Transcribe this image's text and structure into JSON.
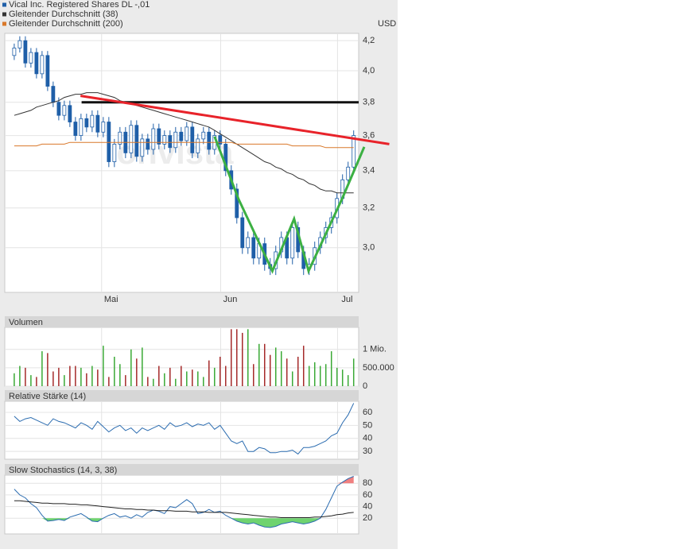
{
  "chart_data": [
    {
      "type": "candlestick",
      "unit": "USD",
      "log": true,
      "grid": true,
      "watermark": "onvista",
      "ylim": [
        2.79,
        4.25
      ],
      "yticks": [
        {
          "value": 3.0,
          "label": "3,0"
        },
        {
          "value": 3.2,
          "label": "3,2"
        },
        {
          "value": 3.4,
          "label": "3,4"
        },
        {
          "value": 3.6,
          "label": "3,6"
        },
        {
          "value": 3.8,
          "label": "3,8"
        },
        {
          "value": 4.0,
          "label": "4,0"
        },
        {
          "value": 4.2,
          "label": "4,2"
        }
      ],
      "xlim": [
        -1.7,
        61.9
      ],
      "xticks": [
        {
          "value": 15.7,
          "label": "Mai"
        },
        {
          "value": 37.1,
          "label": "Jun"
        },
        {
          "value": 58.1,
          "label": "Jul"
        }
      ],
      "series": [
        {
          "name": "Vical Inc. Registered Shares DL -,01",
          "type": "candlestick",
          "color": "#1f5fa8",
          "open": [
            4.1,
            4.15,
            4.2,
            4.05,
            4.12,
            3.98,
            4.1,
            3.9,
            3.8,
            3.72,
            3.78,
            3.68,
            3.6,
            3.7,
            3.65,
            3.72,
            3.62,
            3.68,
            3.45,
            3.55,
            3.62,
            3.5,
            3.66,
            3.48,
            3.58,
            3.52,
            3.64,
            3.55,
            3.6,
            3.53,
            3.62,
            3.57,
            3.65,
            3.5,
            3.58,
            3.62,
            3.52,
            3.6,
            3.55,
            3.4,
            3.3,
            3.15,
            3.0,
            3.05,
            2.95,
            3.02,
            2.92,
            2.9,
            2.98,
            3.05,
            2.95,
            3.1,
            2.98,
            2.9,
            2.92,
            3.0,
            3.05,
            3.1,
            3.15,
            3.25,
            3.35,
            3.42
          ],
          "high": [
            4.18,
            4.23,
            4.23,
            4.15,
            4.15,
            4.13,
            4.13,
            3.93,
            3.83,
            3.81,
            3.81,
            3.71,
            3.73,
            3.73,
            3.75,
            3.75,
            3.71,
            3.71,
            3.58,
            3.65,
            3.65,
            3.69,
            3.69,
            3.61,
            3.61,
            3.67,
            3.67,
            3.63,
            3.63,
            3.65,
            3.65,
            3.68,
            3.68,
            3.61,
            3.65,
            3.65,
            3.63,
            3.63,
            3.58,
            3.43,
            3.33,
            3.18,
            3.08,
            3.08,
            3.05,
            3.05,
            2.95,
            3.01,
            3.08,
            3.08,
            3.13,
            3.13,
            3.01,
            2.95,
            3.03,
            3.08,
            3.13,
            3.18,
            3.28,
            3.38,
            3.45,
            3.63
          ],
          "low": [
            4.07,
            4.12,
            4.02,
            4.02,
            3.95,
            3.95,
            3.87,
            3.77,
            3.69,
            3.69,
            3.65,
            3.57,
            3.57,
            3.62,
            3.62,
            3.59,
            3.59,
            3.42,
            3.42,
            3.52,
            3.47,
            3.47,
            3.45,
            3.45,
            3.49,
            3.49,
            3.52,
            3.52,
            3.5,
            3.5,
            3.54,
            3.54,
            3.47,
            3.47,
            3.55,
            3.49,
            3.49,
            3.52,
            3.37,
            3.27,
            3.12,
            2.97,
            2.97,
            2.92,
            2.92,
            2.89,
            2.87,
            2.87,
            2.95,
            2.92,
            2.92,
            2.95,
            2.87,
            2.87,
            2.89,
            2.97,
            3.02,
            3.07,
            3.12,
            3.22,
            3.32,
            3.39
          ],
          "close": [
            4.15,
            4.2,
            4.05,
            4.12,
            3.98,
            4.1,
            3.9,
            3.8,
            3.72,
            3.78,
            3.68,
            3.6,
            3.7,
            3.65,
            3.72,
            3.62,
            3.68,
            3.45,
            3.55,
            3.62,
            3.5,
            3.66,
            3.48,
            3.58,
            3.52,
            3.64,
            3.55,
            3.6,
            3.53,
            3.62,
            3.57,
            3.65,
            3.5,
            3.58,
            3.62,
            3.52,
            3.6,
            3.55,
            3.4,
            3.3,
            3.15,
            3.0,
            3.05,
            2.95,
            3.02,
            2.92,
            2.9,
            2.98,
            3.05,
            2.95,
            3.1,
            2.98,
            2.9,
            2.92,
            3.0,
            3.05,
            3.1,
            3.15,
            3.25,
            3.35,
            3.42,
            3.6
          ]
        },
        {
          "name": "Gleitender Durchschnitt (38)",
          "type": "line",
          "color": "#333333",
          "values": [
            3.72,
            3.73,
            3.74,
            3.75,
            3.77,
            3.78,
            3.79,
            3.8,
            3.81,
            3.83,
            3.84,
            3.85,
            3.85,
            3.86,
            3.86,
            3.86,
            3.85,
            3.84,
            3.83,
            3.81,
            3.8,
            3.79,
            3.78,
            3.77,
            3.76,
            3.75,
            3.74,
            3.73,
            3.72,
            3.71,
            3.7,
            3.69,
            3.68,
            3.67,
            3.66,
            3.65,
            3.63,
            3.61,
            3.59,
            3.57,
            3.55,
            3.53,
            3.51,
            3.49,
            3.47,
            3.45,
            3.44,
            3.42,
            3.41,
            3.39,
            3.38,
            3.36,
            3.35,
            3.33,
            3.32,
            3.3,
            3.29,
            3.29,
            3.28,
            3.28,
            3.28,
            3.28
          ]
        },
        {
          "name": "Gleitender Durchschnitt (200)",
          "type": "line",
          "color": "#d9782a",
          "values": [
            3.54,
            3.54,
            3.54,
            3.54,
            3.54,
            3.55,
            3.55,
            3.55,
            3.55,
            3.55,
            3.56,
            3.56,
            3.56,
            3.56,
            3.56,
            3.56,
            3.56,
            3.56,
            3.56,
            3.56,
            3.56,
            3.56,
            3.56,
            3.56,
            3.56,
            3.56,
            3.56,
            3.56,
            3.56,
            3.56,
            3.56,
            3.56,
            3.56,
            3.56,
            3.56,
            3.56,
            3.56,
            3.56,
            3.56,
            3.56,
            3.55,
            3.55,
            3.55,
            3.55,
            3.55,
            3.55,
            3.55,
            3.55,
            3.55,
            3.55,
            3.54,
            3.54,
            3.54,
            3.54,
            3.54,
            3.54,
            3.53,
            3.53,
            3.53,
            3.53,
            3.53,
            3.53
          ]
        }
      ],
      "annotations": [
        {
          "color": "#111111",
          "points": [
            [
              12.1,
              3.8
            ],
            [
              61.9,
              3.8
            ]
          ]
        },
        {
          "color": "#e8232a",
          "points": [
            [
              11.9,
              3.84
            ],
            [
              67.4,
              3.55
            ]
          ]
        },
        {
          "color": "#3cb043",
          "points": [
            [
              36,
              3.594
            ],
            [
              40.3,
              3.247
            ],
            [
              46.4,
              2.889
            ],
            [
              50.3,
              3.144
            ],
            [
              52.9,
              2.889
            ],
            [
              58.9,
              3.247
            ],
            [
              62.9,
              3.534
            ]
          ]
        }
      ]
    },
    {
      "type": "bar",
      "title": "Volumen",
      "color_up": "#3aa935",
      "color_down": "#a52a2a",
      "ylim": [
        0,
        1600000
      ],
      "yticks": [
        0,
        {
          "value": 500000,
          "label": "500.000"
        },
        {
          "value": 1000000,
          "label": "1 Mio."
        }
      ],
      "values": [
        350000,
        550000,
        500000,
        300000,
        250000,
        950000,
        900000,
        400000,
        500000,
        300000,
        550000,
        550000,
        500000,
        350000,
        550000,
        450000,
        1100000,
        250000,
        800000,
        600000,
        300000,
        1000000,
        750000,
        1050000,
        250000,
        200000,
        550000,
        350000,
        500000,
        200000,
        550000,
        400000,
        450000,
        400000,
        250000,
        700000,
        500000,
        800000,
        550000,
        1550000,
        1550000,
        1450000,
        1550000,
        600000,
        1150000,
        1150000,
        850000,
        1050000,
        950000,
        750000,
        400000,
        800000,
        1100000,
        550000,
        650000,
        550000,
        600000,
        950000,
        500000,
        450000,
        300000,
        750000
      ]
    },
    {
      "type": "line",
      "title": "Relative Stärke (14)",
      "ylim": [
        24,
        68.5
      ],
      "yticks": [
        30,
        40,
        50,
        60
      ],
      "series": [
        {
          "color": "#2b6cb0",
          "values": [
            57,
            53,
            55,
            56,
            54,
            52,
            50,
            55,
            53,
            52,
            50,
            48,
            52,
            50,
            47,
            53,
            49,
            45,
            48,
            50,
            46,
            48,
            44,
            48,
            46,
            48,
            50,
            47,
            52,
            49,
            50,
            52,
            49,
            51,
            50,
            52,
            47,
            50,
            44,
            38,
            36,
            38,
            30,
            30,
            33,
            32,
            29,
            29,
            30,
            30,
            31,
            28,
            33,
            33,
            34,
            36,
            38,
            42,
            44,
            52,
            58,
            67
          ]
        }
      ]
    },
    {
      "type": "line",
      "title": "Slow Stochastics (14, 3, 38)",
      "ylim": [
        -7,
        94
      ],
      "yticks": [
        20,
        40,
        60,
        80
      ],
      "fill_lower": 20,
      "fill_lower_color": "#6fd36f",
      "fill_upper": 80,
      "fill_upper_color": "#f08080",
      "series": [
        {
          "color": "#2b6cb0",
          "values": [
            70,
            60,
            55,
            45,
            38,
            25,
            15,
            16,
            18,
            16,
            22,
            25,
            28,
            22,
            15,
            14,
            20,
            25,
            28,
            22,
            24,
            20,
            26,
            22,
            30,
            34,
            32,
            28,
            40,
            38,
            45,
            52,
            45,
            28,
            30,
            35,
            30,
            32,
            25,
            20,
            15,
            12,
            10,
            12,
            8,
            5,
            4,
            6,
            10,
            12,
            14,
            12,
            10,
            12,
            15,
            20,
            35,
            55,
            75,
            82,
            88,
            92
          ]
        },
        {
          "color": "#222222",
          "values": [
            50,
            50,
            49,
            48,
            47,
            46,
            46,
            45,
            45,
            45,
            44,
            44,
            43,
            43,
            42,
            41,
            40,
            39,
            38,
            37,
            36,
            36,
            35,
            35,
            34,
            34,
            33,
            33,
            33,
            32,
            32,
            32,
            31,
            31,
            31,
            30,
            30,
            30,
            30,
            29,
            28,
            27,
            26,
            25,
            24,
            23,
            22,
            22,
            21,
            21,
            21,
            21,
            21,
            21,
            22,
            22,
            23,
            24,
            26,
            27,
            29,
            30
          ]
        }
      ]
    }
  ]
}
